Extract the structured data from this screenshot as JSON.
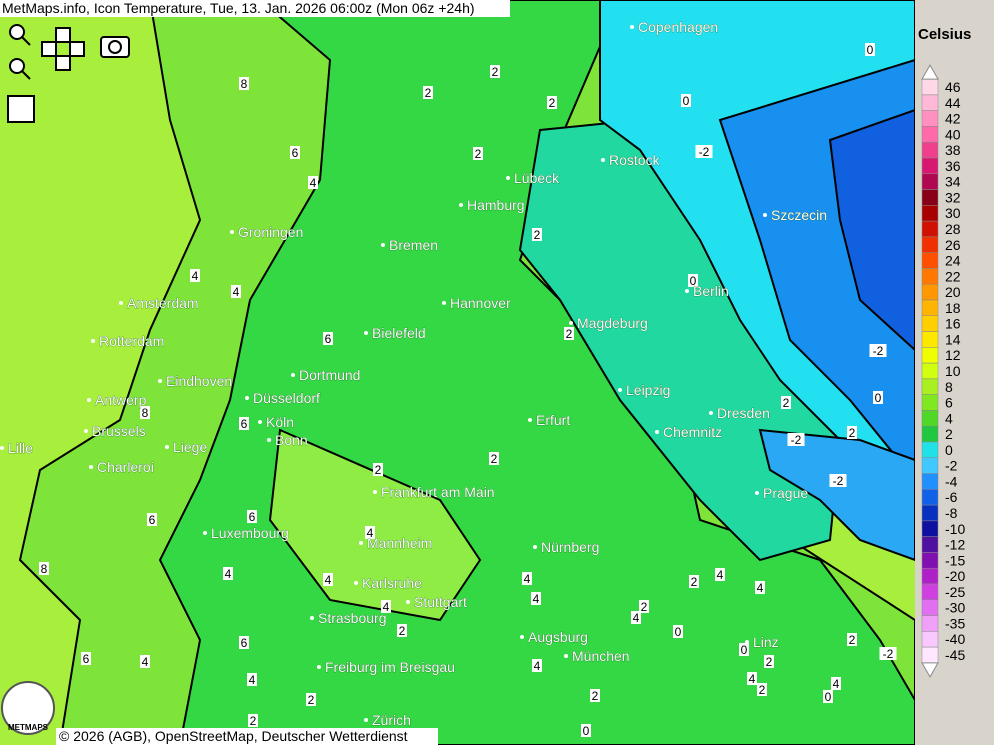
{
  "header": {
    "title": "MetMaps.info, Icon Temperature, Tue, 13. Jan. 2026 06:00z (Mon 06z +24h)"
  },
  "legend": {
    "title": "Celsius",
    "items": [
      {
        "value": 46,
        "color": "#ffd8e8"
      },
      {
        "value": 44,
        "color": "#ffb8d8"
      },
      {
        "value": 42,
        "color": "#ff90c0"
      },
      {
        "value": 40,
        "color": "#ff6aa8"
      },
      {
        "value": 38,
        "color": "#f0408c"
      },
      {
        "value": 36,
        "color": "#d81870"
      },
      {
        "value": 34,
        "color": "#b00850"
      },
      {
        "value": 32,
        "color": "#880018"
      },
      {
        "value": 30,
        "color": "#a80000"
      },
      {
        "value": 28,
        "color": "#d01000"
      },
      {
        "value": 26,
        "color": "#f03000"
      },
      {
        "value": 24,
        "color": "#ff5000"
      },
      {
        "value": 22,
        "color": "#ff7800"
      },
      {
        "value": 20,
        "color": "#ff9800"
      },
      {
        "value": 18,
        "color": "#ffb400"
      },
      {
        "value": 16,
        "color": "#ffd000"
      },
      {
        "value": 14,
        "color": "#ffe800"
      },
      {
        "value": 12,
        "color": "#f0ff00"
      },
      {
        "value": 10,
        "color": "#d0ff10"
      },
      {
        "value": 8,
        "color": "#a8f020"
      },
      {
        "value": 6,
        "color": "#80e820"
      },
      {
        "value": 4,
        "color": "#50d828"
      },
      {
        "value": 2,
        "color": "#20c840"
      },
      {
        "value": 0,
        "color": "#20e0e8"
      },
      {
        "value": -2,
        "color": "#40c8ff"
      },
      {
        "value": -4,
        "color": "#2090ff"
      },
      {
        "value": -6,
        "color": "#1060e8"
      },
      {
        "value": -8,
        "color": "#0830c0"
      },
      {
        "value": -10,
        "color": "#1010a0"
      },
      {
        "value": -12,
        "color": "#5010a0"
      },
      {
        "value": -15,
        "color": "#8010b0"
      },
      {
        "value": -20,
        "color": "#b020c8"
      },
      {
        "value": -25,
        "color": "#d040e0"
      },
      {
        "value": -30,
        "color": "#e070f0"
      },
      {
        "value": -35,
        "color": "#f0a0f8"
      },
      {
        "value": -40,
        "color": "#f8c8ff"
      },
      {
        "value": -45,
        "color": "#ffe8ff"
      }
    ]
  },
  "cities": [
    "Copenhagen",
    "Rostock",
    "Lübeck",
    "Hamburg",
    "Szczecin",
    "Groningen",
    "Bremen",
    "Berlin",
    "Amsterdam",
    "Hannover",
    "Magdeburg",
    "Bielefeld",
    "Rotterdam",
    "Dortmund",
    "Eindhoven",
    "Leipzig",
    "Antwerp",
    "Düsseldorf",
    "Dresden",
    "Köln",
    "Erfurt",
    "Brussels",
    "Chemnitz",
    "Bonn",
    "Lille",
    "Liege",
    "Charleroi",
    "Frankfurt am Main",
    "Prague",
    "Luxembourg",
    "Mannheim",
    "Nürnberg",
    "Karlsruhe",
    "Stuttgart",
    "Strasbourg",
    "Augsburg",
    "Linz",
    "München",
    "Freiburg im Breisgau",
    "Zürich"
  ],
  "contour_labels": [
    8,
    6,
    4,
    2,
    2,
    2,
    2,
    2,
    0,
    0,
    -2,
    0,
    4,
    4,
    6,
    2,
    -2,
    0,
    2,
    2,
    -2,
    -2,
    8,
    6,
    2,
    2,
    6,
    6,
    8,
    4,
    4,
    4,
    4,
    4,
    4,
    2,
    2,
    4,
    4,
    4,
    0,
    0,
    2,
    -2,
    2,
    6,
    4,
    6,
    2,
    4,
    4,
    2,
    4,
    0,
    2,
    2,
    4,
    2,
    0
  ],
  "logo": "METMAPS",
  "footer": "© 2026 (AGB), OpenStreetMap, Deutscher Wetterdienst"
}
